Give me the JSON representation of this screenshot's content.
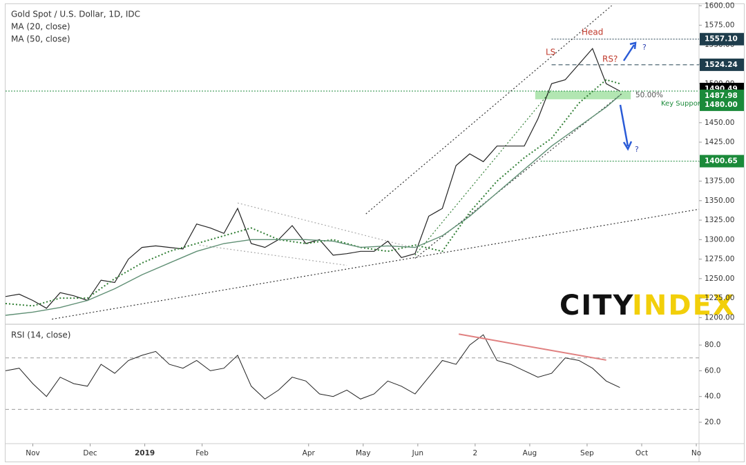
{
  "chart_data": {
    "type": "line",
    "title": "Gold Spot / U.S. Dollar, 1D, IDC",
    "indicators": [
      "MA (20, close)",
      "MA (50, close)"
    ],
    "rsi_title": "RSI (14, close)",
    "xlim": [
      0,
      254
    ],
    "xticks": [
      {
        "value": 10,
        "label": "Nov"
      },
      {
        "value": 31,
        "label": "Dec"
      },
      {
        "value": 51,
        "label": "2019"
      },
      {
        "value": 72,
        "label": "Feb"
      },
      {
        "value": 111,
        "label": "Apr"
      },
      {
        "value": 131,
        "label": "May"
      },
      {
        "value": 151,
        "label": "Jun"
      },
      {
        "value": 172,
        "label": "2"
      },
      {
        "value": 192,
        "label": "Aug"
      },
      {
        "value": 213,
        "label": "Sep"
      },
      {
        "value": 233,
        "label": "Oct"
      },
      {
        "value": 253,
        "label": "No"
      }
    ],
    "ylim": [
      1195,
      1602
    ],
    "yticks": [
      {
        "value": 1200,
        "label": "1200.00"
      },
      {
        "value": 1225,
        "label": "1225.00"
      },
      {
        "value": 1250,
        "label": "1250.00"
      },
      {
        "value": 1275,
        "label": "1275.00"
      },
      {
        "value": 1300,
        "label": "1300.00"
      },
      {
        "value": 1325,
        "label": "1325.00"
      },
      {
        "value": 1350,
        "label": "1350.00"
      },
      {
        "value": 1375,
        "label": "1375.00"
      },
      {
        "value": 1400,
        "label": "1400.00"
      },
      {
        "value": 1425,
        "label": "1425.00"
      },
      {
        "value": 1450,
        "label": "1450.00"
      },
      {
        "value": 1475,
        "label": "1475.00"
      },
      {
        "value": 1500,
        "label": "1500.00"
      },
      {
        "value": 1525,
        "label": "1525.00"
      },
      {
        "value": 1550,
        "label": "1550.00"
      },
      {
        "value": 1575,
        "label": "1575.00"
      },
      {
        "value": 1600,
        "label": "1600.00"
      }
    ],
    "series": [
      {
        "name": "Gold Spot / U.S. Dollar",
        "color": "#222222",
        "x": [
          0,
          5,
          10,
          15,
          20,
          25,
          30,
          35,
          40,
          45,
          50,
          55,
          60,
          65,
          70,
          75,
          80,
          85,
          90,
          95,
          100,
          105,
          110,
          115,
          120,
          125,
          130,
          135,
          140,
          145,
          150,
          155,
          160,
          165,
          170,
          175,
          180,
          185,
          190,
          195,
          200,
          205,
          210,
          215,
          220,
          225
        ],
        "values": [
          1227,
          1230,
          1222,
          1212,
          1232,
          1228,
          1222,
          1248,
          1245,
          1275,
          1290,
          1292,
          1290,
          1288,
          1320,
          1315,
          1308,
          1340,
          1295,
          1290,
          1300,
          1318,
          1295,
          1300,
          1280,
          1282,
          1285,
          1285,
          1298,
          1277,
          1282,
          1330,
          1340,
          1395,
          1410,
          1400,
          1420,
          1420,
          1420,
          1455,
          1500,
          1505,
          1525,
          1545,
          1500,
          1490.49
        ]
      },
      {
        "name": "MA (20, close)",
        "color": "#2e7d32",
        "dash": "2,3",
        "x": [
          0,
          10,
          20,
          30,
          40,
          50,
          60,
          70,
          80,
          90,
          100,
          110,
          120,
          130,
          140,
          150,
          160,
          170,
          180,
          190,
          200,
          210,
          220,
          225
        ],
        "values": [
          1218,
          1215,
          1225,
          1225,
          1250,
          1270,
          1285,
          1295,
          1305,
          1315,
          1300,
          1295,
          1300,
          1290,
          1285,
          1293,
          1285,
          1335,
          1375,
          1405,
          1430,
          1475,
          1505,
          1500
        ]
      },
      {
        "name": "MA (50, close)",
        "color": "#5f8f74",
        "x": [
          0,
          10,
          20,
          30,
          40,
          50,
          60,
          70,
          80,
          90,
          100,
          110,
          120,
          130,
          140,
          150,
          160,
          170,
          180,
          190,
          200,
          210,
          220,
          225
        ],
        "values": [
          1203,
          1207,
          1213,
          1222,
          1237,
          1255,
          1270,
          1285,
          1295,
          1300,
          1300,
          1300,
          1298,
          1290,
          1292,
          1290,
          1305,
          1330,
          1360,
          1390,
          1420,
          1445,
          1470,
          1485
        ]
      }
    ],
    "levels": [
      {
        "value": 1557.1,
        "label": "1557.10",
        "color": "#1e3d4c"
      },
      {
        "value": 1524.24,
        "label": "1524.24",
        "color": "#1e3d4c"
      },
      {
        "value": 1490.49,
        "label": "1490.49",
        "color": "#000000"
      },
      {
        "value": 1487.98,
        "label": "1487.98",
        "color": "#1b8a3a"
      },
      {
        "value": 1480,
        "label": "1480.00",
        "color": "#1b8a3a"
      },
      {
        "value": 1400.65,
        "label": "1400.65",
        "color": "#1b8a3a"
      }
    ],
    "trendlines": [
      {
        "x": [
          132,
          222
        ],
        "y": [
          1333,
          1600
        ],
        "color": "#333333"
      },
      {
        "x": [
          17,
          254
        ],
        "y": [
          1198,
          1339
        ],
        "color": "#333333"
      },
      {
        "x": [
          150,
          226
        ],
        "y": [
          1276,
          1488
        ],
        "color": "#333333"
      },
      {
        "x": [
          150,
          200
        ],
        "y": [
          1280,
          1492
        ],
        "color": "#2e7d32"
      },
      {
        "x": [
          85,
          150
        ],
        "y": [
          1347,
          1289
        ],
        "color": "#aaaaaa"
      },
      {
        "x": [
          71,
          125
        ],
        "y": [
          1293,
          1267
        ],
        "color": "#aaaaaa"
      }
    ],
    "annotations": [
      "LS",
      "Head",
      "RS?",
      "?",
      "?",
      "50.00%",
      "Key Support"
    ],
    "watermark": [
      "CITY",
      "INDEX"
    ],
    "rsi": {
      "ylim": [
        5,
        94
      ],
      "yticks": [
        {
          "value": 20,
          "label": "20.0"
        },
        {
          "value": 40,
          "label": "40.0"
        },
        {
          "value": 60,
          "label": "60.0"
        },
        {
          "value": 80,
          "label": "80.0"
        }
      ],
      "bands": [
        30,
        70
      ],
      "color": "#222222",
      "x": [
        0,
        5,
        10,
        15,
        20,
        25,
        30,
        35,
        40,
        45,
        50,
        55,
        60,
        65,
        70,
        75,
        80,
        85,
        90,
        95,
        100,
        105,
        110,
        115,
        120,
        125,
        130,
        135,
        140,
        145,
        150,
        155,
        160,
        165,
        170,
        175,
        180,
        185,
        190,
        195,
        200,
        205,
        210,
        215,
        220,
        225
      ],
      "values": [
        60,
        62,
        50,
        40,
        55,
        50,
        48,
        65,
        58,
        68,
        72,
        75,
        65,
        62,
        68,
        60,
        62,
        72,
        48,
        38,
        45,
        55,
        52,
        42,
        40,
        45,
        38,
        42,
        52,
        48,
        42,
        55,
        68,
        65,
        80,
        88,
        68,
        65,
        60,
        55,
        58,
        70,
        68,
        62,
        52,
        47
      ],
      "trendline": {
        "x": [
          166,
          220
        ],
        "y": [
          88.5,
          68.3
        ],
        "color": "#e08080"
      }
    }
  }
}
